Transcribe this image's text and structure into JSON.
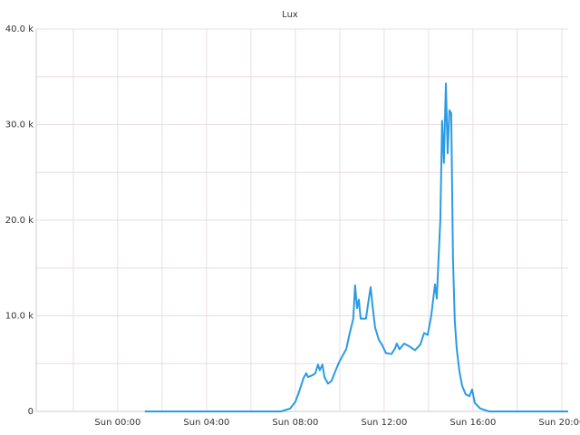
{
  "chart_data": {
    "type": "line",
    "title": "Lux",
    "x": [
      1.22,
      7.35,
      7.76,
      8.0,
      8.16,
      8.37,
      8.49,
      8.57,
      8.78,
      8.9,
      9.02,
      9.1,
      9.22,
      9.31,
      9.47,
      9.63,
      9.8,
      9.96,
      10.12,
      10.29,
      10.45,
      10.61,
      10.69,
      10.78,
      10.86,
      10.94,
      11.18,
      11.31,
      11.39,
      11.47,
      11.59,
      11.76,
      11.92,
      12.08,
      12.33,
      12.49,
      12.57,
      12.69,
      12.9,
      13.14,
      13.39,
      13.63,
      13.8,
      13.96,
      14.12,
      14.29,
      14.37,
      14.45,
      14.53,
      14.61,
      14.69,
      14.78,
      14.86,
      14.94,
      15.02,
      15.1,
      15.18,
      15.27,
      15.39,
      15.51,
      15.67,
      15.84,
      15.96,
      16.08,
      16.33,
      16.73,
      20.29
    ],
    "series": [
      {
        "name": "Lux",
        "color": "#2b9be3",
        "values": [
          0,
          0,
          300,
          1000,
          2000,
          3500,
          4000,
          3600,
          3800,
          4000,
          4900,
          4300,
          4900,
          3600,
          2900,
          3200,
          4200,
          5100,
          5800,
          6500,
          8200,
          9700,
          13200,
          10800,
          11700,
          9700,
          9700,
          11800,
          13000,
          11200,
          8800,
          7500,
          6900,
          6100,
          6000,
          6600,
          7100,
          6500,
          7100,
          6800,
          6400,
          7000,
          8200,
          8000,
          10000,
          13300,
          11800,
          16000,
          20000,
          30400,
          26000,
          34300,
          27000,
          31500,
          31200,
          16000,
          9500,
          6500,
          4200,
          2700,
          1800,
          1600,
          2300,
          900,
          300,
          0,
          0
        ]
      }
    ],
    "xlim": [
      -3.67,
      20.29
    ],
    "xticks": [
      {
        "value": 0,
        "label": "Sun 00:00"
      },
      {
        "value": 4,
        "label": "Sun 04:00"
      },
      {
        "value": 8,
        "label": "Sun 08:00"
      },
      {
        "value": 12,
        "label": "Sun 12:00"
      },
      {
        "value": 16,
        "label": "Sun 16:00"
      },
      {
        "value": 20,
        "label": "Sun 20:00"
      }
    ],
    "xminor_ticks": [
      -2,
      2,
      6,
      10,
      14,
      18
    ],
    "ylim": [
      0,
      40000
    ],
    "yticks": [
      0,
      {
        "value": 10000,
        "label": "10.0 k"
      },
      {
        "value": 20000,
        "label": "20.0 k"
      },
      {
        "value": 30000,
        "label": "30.0 k"
      },
      {
        "value": 40000,
        "label": "40.0 k"
      }
    ],
    "yminor_ticks": [
      5000,
      15000,
      25000,
      35000
    ],
    "grid": true
  }
}
